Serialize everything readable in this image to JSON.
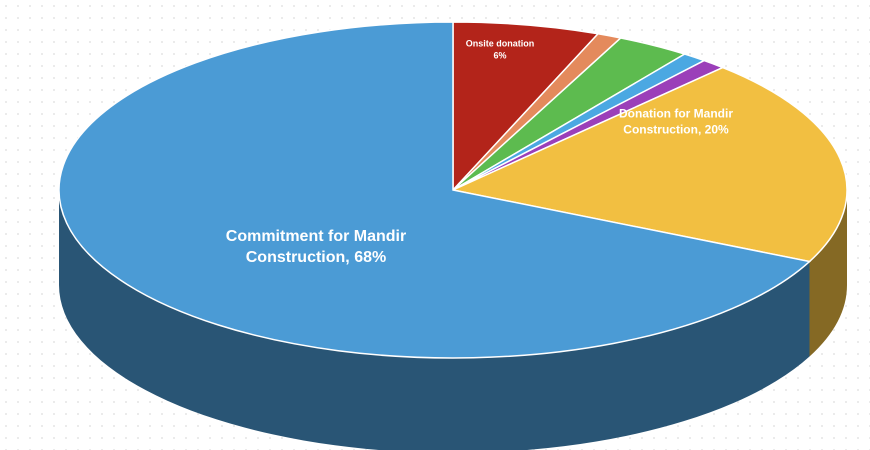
{
  "chart_data": {
    "type": "pie3d",
    "categories": [
      "Onsite donation",
      null,
      null,
      null,
      null,
      "Donation for Mandir Construction",
      "Commitment for Mandir Construction"
    ],
    "values": [
      6,
      1,
      3,
      1,
      1,
      20,
      68
    ],
    "value_labels": [
      "6%",
      null,
      null,
      null,
      null,
      "20%",
      "68%"
    ],
    "colors": [
      "#b3241a",
      "#e48a5c",
      "#5dbb4f",
      "#4ba8e2",
      "#9b3fb9",
      "#f2bf41",
      "#4b9bd5"
    ]
  }
}
